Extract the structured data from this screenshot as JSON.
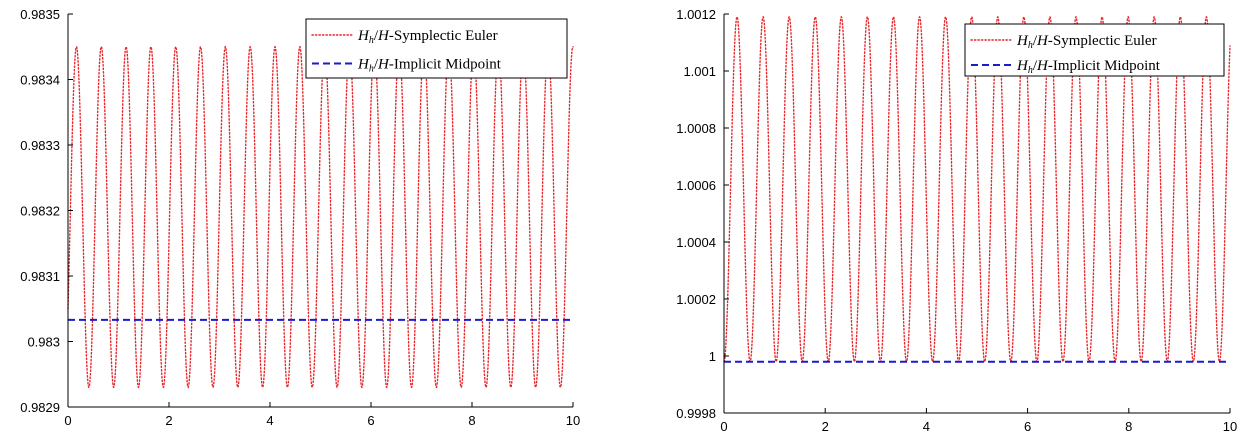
{
  "chart_data": [
    {
      "type": "line",
      "xlim": [
        0,
        10
      ],
      "ylim": [
        0.9829,
        0.9835
      ],
      "xticks": [
        "0",
        "2",
        "4",
        "6",
        "8",
        "10"
      ],
      "yticks": [
        "0.9829",
        "0.983",
        "0.9831",
        "0.9832",
        "0.9833",
        "0.9834",
        "0.9835"
      ],
      "grid": false,
      "legend_position": "top-right",
      "series": [
        {
          "name": "H_h/H-Symplectic Euler",
          "style": "dotted",
          "color": "#e8262b",
          "oscillation": {
            "min": 0.98293,
            "max": 0.98345,
            "start": 0.98305,
            "period": 0.4915
          }
        },
        {
          "name": "H_h/H-Implicit Midpoint",
          "style": "dashed",
          "color": "#1b1bcf",
          "constant": 0.983033
        }
      ]
    },
    {
      "type": "line",
      "xlim": [
        0,
        10
      ],
      "ylim": [
        0.9998,
        1.0012
      ],
      "xticks": [
        "0",
        "2",
        "4",
        "6",
        "8",
        "10"
      ],
      "yticks": [
        "0.9998",
        "1",
        "1.0002",
        "1.0004",
        "1.0006",
        "1.0008",
        "1.001",
        "1.0012"
      ],
      "grid": false,
      "legend_position": "top-right",
      "series": [
        {
          "name": "H_h/H-Symplectic Euler",
          "style": "dotted",
          "color": "#e8262b",
          "oscillation": {
            "min": 0.99998,
            "max": 1.00119,
            "start": 0.99998,
            "period": 0.5153
          }
        },
        {
          "name": "H_h/H-Implicit Midpoint",
          "style": "dashed",
          "color": "#1b1bcf",
          "constant": 0.99998
        }
      ]
    }
  ],
  "legend": {
    "items": [
      {
        "sym": "H",
        "sub": "h",
        "slash": "/",
        "sym2": "H",
        "text": "-Symplectic Euler"
      },
      {
        "sym": "H",
        "sub": "h",
        "slash": "/",
        "sym2": "H",
        "text": "-Implicit Midpoint"
      }
    ]
  }
}
